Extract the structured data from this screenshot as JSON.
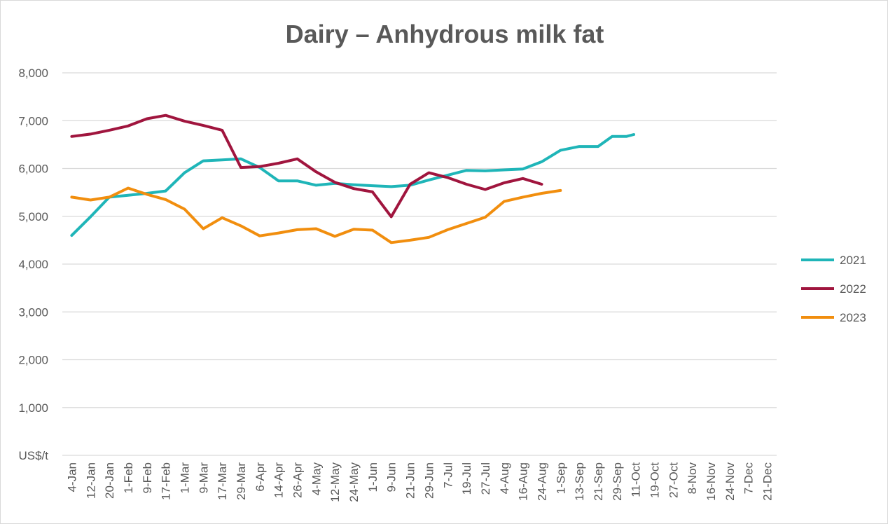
{
  "chart_data": {
    "type": "line",
    "title": "Dairy – Anhydrous milk fat",
    "ylabel": "US$/t",
    "ylim": [
      0,
      8000
    ],
    "yticks": [
      "1,000",
      "2,000",
      "3,000",
      "4,000",
      "5,000",
      "6,000",
      "7,000",
      "8,000"
    ],
    "grid": true,
    "legend_position": "right",
    "categories": [
      "4-Jan",
      "12-Jan",
      "20-Jan",
      "1-Feb",
      "9-Feb",
      "17-Feb",
      "1-Mar",
      "9-Mar",
      "17-Mar",
      "29-Mar",
      "6-Apr",
      "14-Apr",
      "26-Apr",
      "4-May",
      "12-May",
      "24-May",
      "1-Jun",
      "9-Jun",
      "21-Jun",
      "29-Jun",
      "7-Jul",
      "19-Jul",
      "27-Jul",
      "4-Aug",
      "16-Aug",
      "24-Aug",
      "1-Sep",
      "13-Sep",
      "21-Sep",
      "29-Sep",
      "11-Oct",
      "19-Oct",
      "27-Oct",
      "8-Nov",
      "16-Nov",
      "24-Nov",
      "7-Dec",
      "21-Dec"
    ],
    "series": [
      {
        "name": "2021",
        "color": "#1fb5b8",
        "points": [
          [
            0,
            4600
          ],
          [
            1,
            4990
          ],
          [
            2,
            5400
          ],
          [
            3,
            5440
          ],
          [
            4,
            5480
          ],
          [
            5,
            5530
          ],
          [
            6,
            5910
          ],
          [
            7,
            6160
          ],
          [
            8,
            6180
          ],
          [
            9,
            6200
          ],
          [
            10,
            6020
          ],
          [
            11,
            5740
          ],
          [
            12,
            5740
          ],
          [
            13,
            5650
          ],
          [
            14,
            5690
          ],
          [
            15,
            5660
          ],
          [
            16,
            5640
          ],
          [
            17,
            5620
          ],
          [
            18,
            5650
          ],
          [
            19,
            5760
          ],
          [
            20,
            5860
          ],
          [
            21,
            5960
          ],
          [
            22,
            5950
          ],
          [
            23,
            5970
          ],
          [
            24,
            5990
          ],
          [
            25,
            6140
          ],
          [
            26,
            6380
          ],
          [
            27,
            6460
          ],
          [
            28,
            6460
          ],
          [
            28.75,
            6670
          ],
          [
            29.5,
            6670
          ],
          [
            29.9,
            6710
          ]
        ]
      },
      {
        "name": "2022",
        "color": "#a0153e",
        "points": [
          [
            0,
            6670
          ],
          [
            1,
            6720
          ],
          [
            2,
            6800
          ],
          [
            3,
            6890
          ],
          [
            4,
            7040
          ],
          [
            5,
            7110
          ],
          [
            6,
            6990
          ],
          [
            7,
            6900
          ],
          [
            8,
            6800
          ],
          [
            9,
            6020
          ],
          [
            10,
            6040
          ],
          [
            11,
            6110
          ],
          [
            12,
            6200
          ],
          [
            13,
            5930
          ],
          [
            14,
            5710
          ],
          [
            15,
            5580
          ],
          [
            16,
            5510
          ],
          [
            17,
            4990
          ],
          [
            18,
            5670
          ],
          [
            19,
            5910
          ],
          [
            20,
            5810
          ],
          [
            21,
            5670
          ],
          [
            22,
            5560
          ],
          [
            23,
            5700
          ],
          [
            24,
            5790
          ],
          [
            25,
            5670
          ]
        ]
      },
      {
        "name": "2023",
        "color": "#f18e0e",
        "points": [
          [
            0,
            5400
          ],
          [
            1,
            5340
          ],
          [
            2,
            5400
          ],
          [
            3,
            5590
          ],
          [
            4,
            5460
          ],
          [
            5,
            5350
          ],
          [
            6,
            5150
          ],
          [
            7,
            4740
          ],
          [
            8,
            4970
          ],
          [
            9,
            4800
          ],
          [
            10,
            4590
          ],
          [
            11,
            4650
          ],
          [
            12,
            4720
          ],
          [
            13,
            4740
          ],
          [
            14,
            4580
          ],
          [
            15,
            4730
          ],
          [
            16,
            4710
          ],
          [
            17,
            4450
          ],
          [
            18,
            4500
          ],
          [
            19,
            4560
          ],
          [
            20,
            4720
          ],
          [
            21,
            4850
          ],
          [
            22,
            4980
          ],
          [
            23,
            5310
          ],
          [
            24,
            5400
          ],
          [
            25,
            5480
          ],
          [
            26,
            5540
          ]
        ]
      }
    ]
  }
}
